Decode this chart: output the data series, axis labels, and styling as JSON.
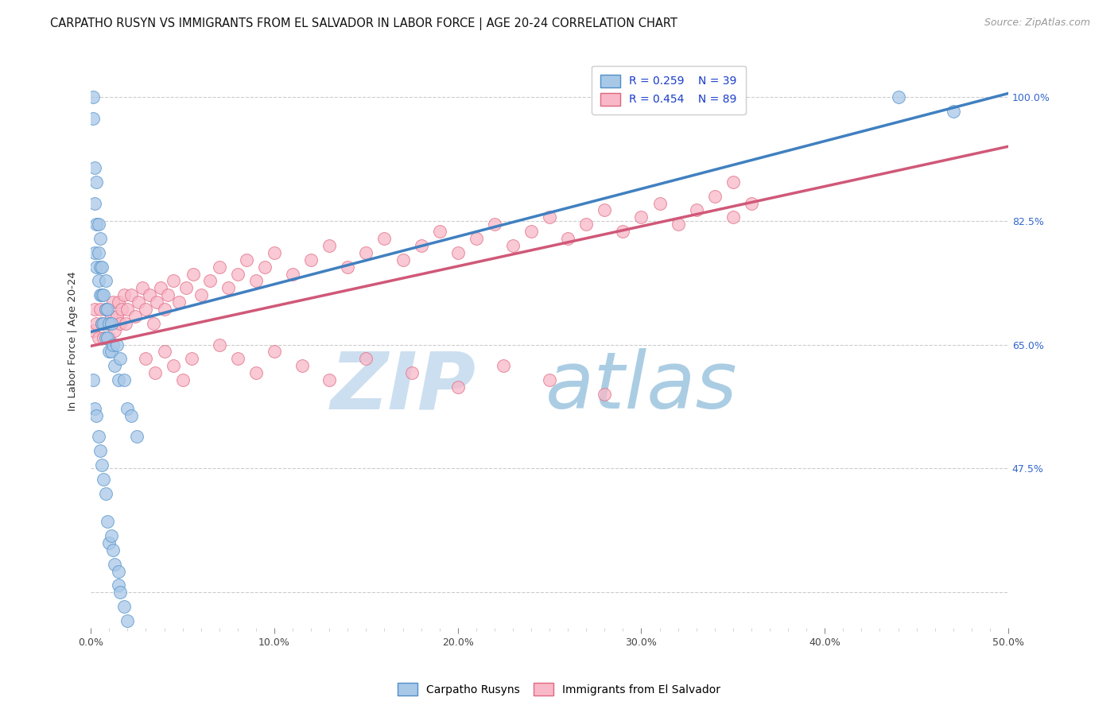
{
  "title": "CARPATHO RUSYN VS IMMIGRANTS FROM EL SALVADOR IN LABOR FORCE | AGE 20-24 CORRELATION CHART",
  "source": "Source: ZipAtlas.com",
  "ylabel": "In Labor Force | Age 20-24",
  "xmin": 0.0,
  "xmax": 0.5,
  "ymin": 0.25,
  "ymax": 1.06,
  "yticks": [
    0.3,
    0.475,
    0.65,
    0.825,
    1.0
  ],
  "ytick_labels": [
    "",
    "47.5%",
    "65.0%",
    "82.5%",
    "100.0%"
  ],
  "xtick_vals": [
    0.0,
    0.1,
    0.2,
    0.3,
    0.4,
    0.5
  ],
  "xtick_labels": [
    "0.0%",
    "10.0%",
    "20.0%",
    "30.0%",
    "40.0%",
    "50.0%"
  ],
  "legend_r_blue": "R = 0.259",
  "legend_n_blue": "N = 39",
  "legend_r_pink": "R = 0.454",
  "legend_n_pink": "N = 89",
  "blue_fill": "#a8c8e8",
  "blue_edge": "#5090c8",
  "pink_fill": "#f8b8c8",
  "pink_edge": "#e06880",
  "line_blue": "#4080c0",
  "line_pink": "#d05878",
  "blue_label": "Carpatho Rusyns",
  "pink_label": "Immigrants from El Salvador",
  "blue_line_x": [
    0.0,
    0.5
  ],
  "blue_line_y": [
    0.668,
    1.005
  ],
  "pink_line_x": [
    0.0,
    0.5
  ],
  "pink_line_y": [
    0.648,
    0.93
  ],
  "blue_x": [
    0.001,
    0.001,
    0.002,
    0.002,
    0.002,
    0.003,
    0.003,
    0.003,
    0.004,
    0.004,
    0.004,
    0.005,
    0.005,
    0.005,
    0.006,
    0.006,
    0.006,
    0.007,
    0.007,
    0.008,
    0.008,
    0.008,
    0.009,
    0.009,
    0.01,
    0.01,
    0.011,
    0.011,
    0.012,
    0.013,
    0.014,
    0.015,
    0.016,
    0.018,
    0.02,
    0.022,
    0.025,
    0.44,
    0.47
  ],
  "blue_y": [
    0.97,
    1.0,
    0.9,
    0.85,
    0.78,
    0.88,
    0.82,
    0.76,
    0.82,
    0.78,
    0.74,
    0.8,
    0.76,
    0.72,
    0.76,
    0.72,
    0.68,
    0.72,
    0.68,
    0.74,
    0.7,
    0.66,
    0.7,
    0.66,
    0.68,
    0.64,
    0.68,
    0.64,
    0.65,
    0.62,
    0.65,
    0.6,
    0.63,
    0.6,
    0.56,
    0.55,
    0.52,
    1.0,
    0.98
  ],
  "blue_low_x": [
    0.001,
    0.002,
    0.003,
    0.004,
    0.005,
    0.006,
    0.007,
    0.008,
    0.009,
    0.01,
    0.011,
    0.012,
    0.013,
    0.015,
    0.015,
    0.016,
    0.018,
    0.02
  ],
  "blue_low_y": [
    0.6,
    0.56,
    0.55,
    0.52,
    0.5,
    0.48,
    0.46,
    0.44,
    0.4,
    0.37,
    0.38,
    0.36,
    0.34,
    0.33,
    0.31,
    0.3,
    0.28,
    0.26
  ],
  "pink_x": [
    0.001,
    0.002,
    0.003,
    0.004,
    0.005,
    0.006,
    0.007,
    0.008,
    0.009,
    0.01,
    0.011,
    0.012,
    0.013,
    0.014,
    0.015,
    0.016,
    0.017,
    0.018,
    0.019,
    0.02,
    0.022,
    0.024,
    0.026,
    0.028,
    0.03,
    0.032,
    0.034,
    0.036,
    0.038,
    0.04,
    0.042,
    0.045,
    0.048,
    0.052,
    0.056,
    0.06,
    0.065,
    0.07,
    0.075,
    0.08,
    0.085,
    0.09,
    0.095,
    0.1,
    0.11,
    0.12,
    0.13,
    0.14,
    0.15,
    0.16,
    0.17,
    0.18,
    0.19,
    0.2,
    0.21,
    0.22,
    0.23,
    0.24,
    0.25,
    0.26,
    0.27,
    0.28,
    0.29,
    0.3,
    0.31,
    0.32,
    0.33,
    0.34,
    0.35,
    0.36,
    0.03,
    0.035,
    0.04,
    0.045,
    0.05,
    0.055,
    0.07,
    0.08,
    0.09,
    0.1,
    0.115,
    0.13,
    0.15,
    0.175,
    0.2,
    0.225,
    0.25,
    0.28,
    0.35
  ],
  "pink_y": [
    0.67,
    0.7,
    0.68,
    0.66,
    0.7,
    0.68,
    0.66,
    0.7,
    0.68,
    0.66,
    0.69,
    0.71,
    0.67,
    0.69,
    0.71,
    0.68,
    0.7,
    0.72,
    0.68,
    0.7,
    0.72,
    0.69,
    0.71,
    0.73,
    0.7,
    0.72,
    0.68,
    0.71,
    0.73,
    0.7,
    0.72,
    0.74,
    0.71,
    0.73,
    0.75,
    0.72,
    0.74,
    0.76,
    0.73,
    0.75,
    0.77,
    0.74,
    0.76,
    0.78,
    0.75,
    0.77,
    0.79,
    0.76,
    0.78,
    0.8,
    0.77,
    0.79,
    0.81,
    0.78,
    0.8,
    0.82,
    0.79,
    0.81,
    0.83,
    0.8,
    0.82,
    0.84,
    0.81,
    0.83,
    0.85,
    0.82,
    0.84,
    0.86,
    0.83,
    0.85,
    0.63,
    0.61,
    0.64,
    0.62,
    0.6,
    0.63,
    0.65,
    0.63,
    0.61,
    0.64,
    0.62,
    0.6,
    0.63,
    0.61,
    0.59,
    0.62,
    0.6,
    0.58,
    0.88
  ],
  "title_fontsize": 10.5,
  "tick_fontsize": 9,
  "legend_fontsize": 10,
  "source_fontsize": 9
}
